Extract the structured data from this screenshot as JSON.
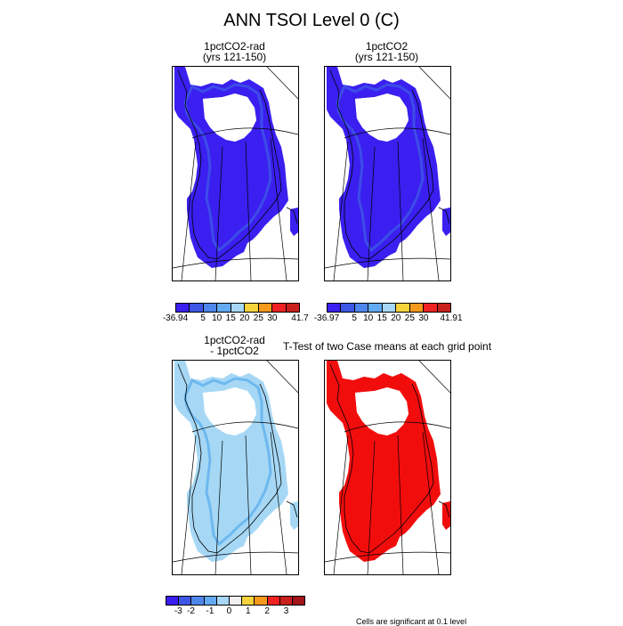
{
  "figure": {
    "title": "ANN TSOI Level 0 (C)",
    "footnote": "Cells are significant at 0.1 level"
  },
  "panels": {
    "p1": {
      "title": "1pctCO2-rad\n(yrs 121-150)",
      "fill": "#3a1ff0",
      "edge": "#3f57e6"
    },
    "p2": {
      "title": "1pctCO2\n(yrs 121-150)",
      "fill": "#3a1ff0",
      "edge": "#3f57e6"
    },
    "p3": {
      "title": "1pctCO2-rad\n- 1pctCO2",
      "fill": "#a6d8f5",
      "edge": "#5fb0ee"
    },
    "p4": {
      "title": "T-Test of two Case means at each grid point",
      "fill": "#f20d0d",
      "edge": "#f20d0d"
    }
  },
  "colorbars": {
    "cb1": {
      "colors": [
        "#3a1ff0",
        "#3f57e6",
        "#4f86ec",
        "#62aaf1",
        "#a7d7f5",
        "#f6d33b",
        "#f79a1c",
        "#ee2222",
        "#c8201c"
      ],
      "labels": [
        {
          "text": "-36.94",
          "pos": 0.0
        },
        {
          "text": "5",
          "pos": 0.2222
        },
        {
          "text": "10",
          "pos": 0.3333
        },
        {
          "text": "15",
          "pos": 0.4444
        },
        {
          "text": "20",
          "pos": 0.5556
        },
        {
          "text": "25",
          "pos": 0.6667
        },
        {
          "text": "30",
          "pos": 0.7778
        },
        {
          "text": "41.7",
          "pos": 1.0
        }
      ]
    },
    "cb2": {
      "colors": [
        "#3a1ff0",
        "#3f57e6",
        "#4f86ec",
        "#62aaf1",
        "#a7d7f5",
        "#f6d33b",
        "#f79a1c",
        "#ee2222",
        "#c8201c"
      ],
      "labels": [
        {
          "text": "-36.97",
          "pos": 0.0
        },
        {
          "text": "5",
          "pos": 0.2222
        },
        {
          "text": "10",
          "pos": 0.3333
        },
        {
          "text": "15",
          "pos": 0.4444
        },
        {
          "text": "20",
          "pos": 0.5556
        },
        {
          "text": "25",
          "pos": 0.6667
        },
        {
          "text": "30",
          "pos": 0.7778
        },
        {
          "text": "41.91",
          "pos": 1.0
        }
      ]
    },
    "cb3": {
      "colors": [
        "#3a1ff0",
        "#3f57e6",
        "#4f86ec",
        "#62aaf1",
        "#a7d7f5",
        "#f0f0f0",
        "#f6d33b",
        "#f79a1c",
        "#ee2222",
        "#c8201c",
        "#a0141a"
      ],
      "labels": [
        {
          "text": "-3",
          "pos": 0.0909
        },
        {
          "text": "-2",
          "pos": 0.1818
        },
        {
          "text": "-1",
          "pos": 0.3182
        },
        {
          "text": "0",
          "pos": 0.4545
        },
        {
          "text": "1",
          "pos": 0.5909
        },
        {
          "text": "2",
          "pos": 0.7273
        },
        {
          "text": "3",
          "pos": 0.8636
        }
      ]
    }
  }
}
